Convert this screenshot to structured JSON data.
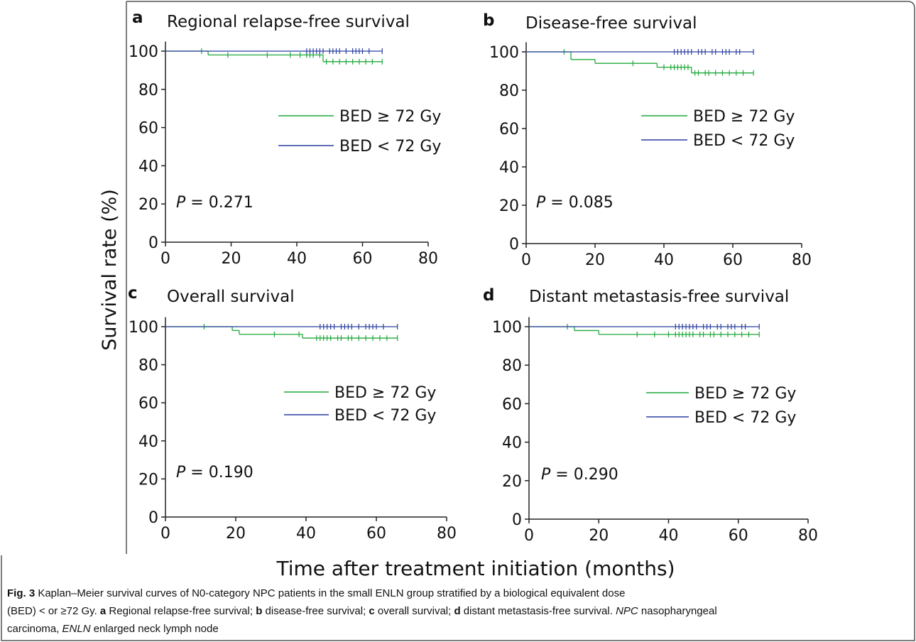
{
  "figure": {
    "ylabel": "Survival rate (%)",
    "xlabel": "Time after treatment initiation (months)"
  },
  "caption": [
    [
      {
        "text": "Fig. 3",
        "style": "bold"
      },
      {
        "text": "  Kaplan–Meier survival curves of N0-category NPC patients in the small ENLN group stratified by a biological equivalent dose",
        "style": "normal"
      }
    ],
    [
      {
        "text": "(BED) < or ≥72 Gy. ",
        "style": "normal"
      },
      {
        "text": "a",
        "style": "bold"
      },
      {
        "text": " Regional relapse-free survival; ",
        "style": "normal"
      },
      {
        "text": "b",
        "style": "bold"
      },
      {
        "text": " disease-free survival; ",
        "style": "normal"
      },
      {
        "text": "c",
        "style": "bold"
      },
      {
        "text": " overall survival; ",
        "style": "normal"
      },
      {
        "text": "d",
        "style": "bold"
      },
      {
        "text": " distant metastasis-free survival. ",
        "style": "normal"
      },
      {
        "text": "NPC",
        "style": "italic"
      },
      {
        "text": " nasopharyngeal",
        "style": "normal"
      }
    ],
    [
      {
        "text": "carcinoma, ",
        "style": "normal"
      },
      {
        "text": "ENLN",
        "style": "italic"
      },
      {
        "text": " enlarged neck lymph node",
        "style": "normal"
      }
    ]
  ],
  "chart_data": [
    {
      "type": "step",
      "letter": "a",
      "title": "Regional relapse-free survival",
      "annotation_symbol": "P",
      "annotation": "= 0.271",
      "x": [
        0,
        13,
        48,
        66
      ],
      "xlim": [
        0,
        80
      ],
      "ylim": [
        0,
        105
      ],
      "xticks": [
        0,
        20,
        40,
        60,
        80
      ],
      "yticks": [
        0,
        20,
        40,
        60,
        80,
        100
      ],
      "series": [
        {
          "name": "BED ≥ 72 Gy",
          "color": "#1fa83a",
          "values": [
            100,
            98,
            94.5,
            94.5
          ],
          "censored_x": [
            11,
            19,
            31,
            38,
            41,
            43,
            44,
            45,
            47,
            49,
            51,
            53,
            55,
            57,
            59,
            61,
            63,
            66
          ]
        },
        {
          "name": "BED < 72 Gy",
          "color": "#2a3fa0",
          "values": [
            100,
            100,
            100,
            100
          ],
          "censored_x": [
            43,
            44,
            45,
            46,
            47,
            48,
            50,
            51,
            52,
            53,
            55,
            57,
            58,
            59,
            60,
            62,
            66
          ]
        }
      ]
    },
    {
      "type": "step",
      "letter": "b",
      "title": "Disease-free survival",
      "annotation_symbol": "P",
      "annotation": "= 0.085",
      "x": [
        0,
        13,
        20,
        38,
        48,
        66
      ],
      "xlim": [
        0,
        80
      ],
      "ylim": [
        0,
        105
      ],
      "xticks": [
        0,
        20,
        40,
        60,
        80
      ],
      "yticks": [
        0,
        20,
        40,
        60,
        80,
        100
      ],
      "series": [
        {
          "name": "BED ≥ 72 Gy",
          "color": "#1fa83a",
          "values": [
            100,
            96,
            94,
            92,
            89,
            89
          ],
          "censored_x": [
            11,
            31,
            40,
            42,
            43,
            44,
            45,
            46,
            47,
            49,
            50,
            52,
            53,
            55,
            57,
            59,
            61,
            63,
            66
          ]
        },
        {
          "name": "BED < 72 Gy",
          "color": "#2a3fa0",
          "values": [
            100,
            100,
            100,
            100,
            100,
            100
          ],
          "censored_x": [
            43,
            44,
            45,
            46,
            47,
            48,
            50,
            51,
            52,
            54,
            55,
            57,
            58,
            59,
            61,
            62,
            66
          ]
        }
      ]
    },
    {
      "type": "step",
      "letter": "c",
      "title": "Overall survival",
      "annotation_symbol": "P",
      "annotation": "= 0.190",
      "x": [
        0,
        19,
        21,
        39,
        66
      ],
      "xlim": [
        0,
        80
      ],
      "ylim": [
        0,
        105
      ],
      "xticks": [
        0,
        20,
        40,
        60,
        80
      ],
      "yticks": [
        0,
        20,
        40,
        60,
        80,
        100
      ],
      "series": [
        {
          "name": "BED ≥ 72 Gy",
          "color": "#1fa83a",
          "values": [
            100,
            98,
            96,
            94,
            94
          ],
          "censored_x": [
            11,
            31,
            38,
            43,
            44,
            45,
            46,
            47,
            49,
            50,
            52,
            53,
            55,
            57,
            59,
            61,
            63,
            66
          ]
        },
        {
          "name": "BED < 72 Gy",
          "color": "#2a3fa0",
          "values": [
            100,
            100,
            100,
            100,
            100
          ],
          "censored_x": [
            44,
            45,
            46,
            47,
            48,
            50,
            51,
            52,
            53,
            55,
            57,
            58,
            59,
            60,
            62,
            66
          ]
        }
      ]
    },
    {
      "type": "step",
      "letter": "d",
      "title": "Distant metastasis-free survival",
      "annotation_symbol": "P",
      "annotation": "= 0.290",
      "x": [
        0,
        13,
        20,
        66
      ],
      "xlim": [
        0,
        80
      ],
      "ylim": [
        0,
        105
      ],
      "xticks": [
        0,
        20,
        40,
        60,
        80
      ],
      "yticks": [
        0,
        20,
        40,
        60,
        80,
        100
      ],
      "series": [
        {
          "name": "BED ≥ 72 Gy",
          "color": "#1fa83a",
          "values": [
            100,
            98,
            96,
            96
          ],
          "censored_x": [
            11,
            31,
            36,
            40,
            42,
            43,
            44,
            45,
            46,
            47,
            49,
            50,
            52,
            53,
            55,
            57,
            59,
            61,
            63,
            66
          ]
        },
        {
          "name": "BED < 72 Gy",
          "color": "#2a3fa0",
          "values": [
            100,
            100,
            100,
            100
          ],
          "censored_x": [
            42,
            43,
            44,
            45,
            46,
            47,
            48,
            50,
            51,
            52,
            54,
            55,
            57,
            58,
            59,
            61,
            62,
            66
          ]
        }
      ]
    }
  ]
}
